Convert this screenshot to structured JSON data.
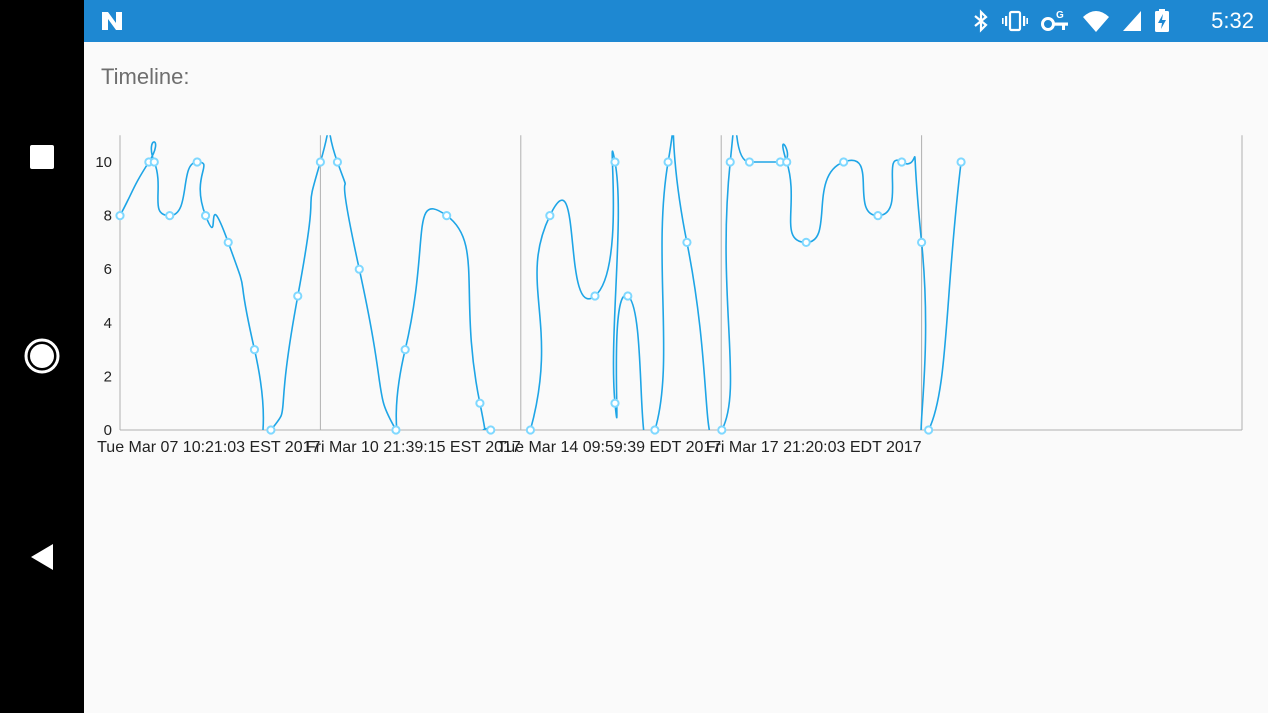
{
  "status_bar": {
    "time": "5:32",
    "icons": [
      "notification-n-icon",
      "bluetooth-icon",
      "vibrate-icon",
      "vpn-key-icon",
      "wifi-icon",
      "cell-signal-icon",
      "battery-charging-icon"
    ]
  },
  "navigation": {
    "buttons": [
      "recents-button",
      "home-button",
      "back-button"
    ]
  },
  "page": {
    "heading": "Timeline:"
  },
  "chart_data": {
    "type": "line",
    "title": "",
    "xlabel": "",
    "ylabel": "",
    "ylim": [
      0,
      11
    ],
    "yticks": [
      0,
      2,
      4,
      6,
      8,
      10
    ],
    "xtick_labels": [
      "Tue Mar 07 10:21:03 EST 2017",
      "Fri Mar 10 21:39:15 EST 2017",
      "Tue Mar 14 09:59:39 EDT 2017",
      "Fri Mar 17 21:20:03 EDT 2017"
    ],
    "grid": "vertical lines at x ticks",
    "series_color": "#1ea5e6",
    "marker_fill": "#ffffff",
    "marker_stroke": "#7fd8ff",
    "points": [
      {
        "x": 0.0,
        "y": 8
      },
      {
        "x": 0.144,
        "y": 10
      },
      {
        "x": 0.171,
        "y": 10
      },
      {
        "x": 0.248,
        "y": 8
      },
      {
        "x": 0.385,
        "y": 10
      },
      {
        "x": 0.427,
        "y": 8
      },
      {
        "x": 0.54,
        "y": 7
      },
      {
        "x": 0.671,
        "y": 3
      },
      {
        "x": 0.753,
        "y": 0
      },
      {
        "x": 0.887,
        "y": 5
      },
      {
        "x": 1.0,
        "y": 10
      },
      {
        "x": 1.085,
        "y": 10
      },
      {
        "x": 1.194,
        "y": 6
      },
      {
        "x": 1.377,
        "y": 0
      },
      {
        "x": 1.423,
        "y": 3
      },
      {
        "x": 1.63,
        "y": 8
      },
      {
        "x": 1.796,
        "y": 1
      },
      {
        "x": 1.85,
        "y": 0
      },
      {
        "x": 2.048,
        "y": 0
      },
      {
        "x": 2.145,
        "y": 8
      },
      {
        "x": 2.37,
        "y": 5
      },
      {
        "x": 2.47,
        "y": 10
      },
      {
        "x": 2.47,
        "y": 1
      },
      {
        "x": 2.534,
        "y": 5
      },
      {
        "x": 2.669,
        "y": 0
      },
      {
        "x": 2.735,
        "y": 10
      },
      {
        "x": 2.829,
        "y": 7
      },
      {
        "x": 3.003,
        "y": 0
      },
      {
        "x": 3.045,
        "y": 10
      },
      {
        "x": 3.141,
        "y": 10
      },
      {
        "x": 3.295,
        "y": 10
      },
      {
        "x": 3.327,
        "y": 10
      },
      {
        "x": 3.424,
        "y": 7
      },
      {
        "x": 3.611,
        "y": 10
      },
      {
        "x": 3.782,
        "y": 8
      },
      {
        "x": 3.901,
        "y": 10
      },
      {
        "x": 4.0,
        "y": 7
      },
      {
        "x": 4.035,
        "y": 0
      },
      {
        "x": 4.197,
        "y": 10
      }
    ]
  }
}
